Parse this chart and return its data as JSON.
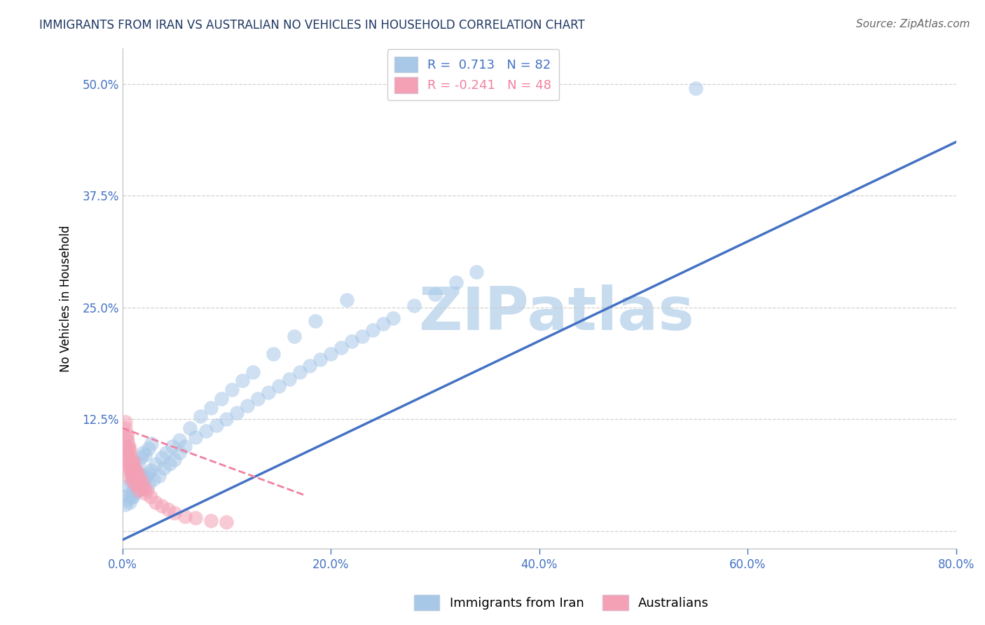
{
  "title": "IMMIGRANTS FROM IRAN VS AUSTRALIAN NO VEHICLES IN HOUSEHOLD CORRELATION CHART",
  "source": "Source: ZipAtlas.com",
  "ylabel": "No Vehicles in Household",
  "xlim": [
    0.0,
    0.8
  ],
  "ylim": [
    -0.02,
    0.54
  ],
  "xticks": [
    0.0,
    0.2,
    0.4,
    0.6,
    0.8
  ],
  "xticklabels": [
    "0.0%",
    "20.0%",
    "40.0%",
    "60.0%",
    "80.0%"
  ],
  "yticks": [
    0.0,
    0.125,
    0.25,
    0.375,
    0.5
  ],
  "yticklabels": [
    "",
    "12.5%",
    "25.0%",
    "37.5%",
    "50.0%"
  ],
  "legend_blue_label": "R =  0.713   N = 82",
  "legend_pink_label": "R = -0.241   N = 48",
  "legend_label1": "Immigrants from Iran",
  "legend_label2": "Australians",
  "blue_color": "#A8C8E8",
  "pink_color": "#F4A0B5",
  "blue_line_color": "#4472C4",
  "pink_line_color": "#F080A0",
  "axis_color": "#4472C4",
  "grid_color": "#CCCCCC",
  "watermark_color": "#C8DCEF",
  "watermark_text": "ZIPatlas",
  "title_color": "#1F3864",
  "blue_line_x": [
    0.0,
    0.8
  ],
  "blue_line_y": [
    -0.01,
    0.435
  ],
  "pink_line_x": [
    0.0,
    0.175
  ],
  "pink_line_y": [
    0.115,
    0.04
  ],
  "blue_scatter_x": [
    0.005,
    0.008,
    0.01,
    0.012,
    0.015,
    0.018,
    0.02,
    0.022,
    0.025,
    0.008,
    0.01,
    0.012,
    0.015,
    0.018,
    0.02,
    0.022,
    0.025,
    0.028,
    0.005,
    0.008,
    0.01,
    0.015,
    0.02,
    0.025,
    0.03,
    0.035,
    0.04,
    0.045,
    0.05,
    0.055,
    0.06,
    0.07,
    0.08,
    0.09,
    0.1,
    0.11,
    0.12,
    0.13,
    0.14,
    0.15,
    0.16,
    0.17,
    0.18,
    0.19,
    0.2,
    0.21,
    0.22,
    0.23,
    0.24,
    0.25,
    0.26,
    0.28,
    0.3,
    0.32,
    0.34,
    0.003,
    0.005,
    0.007,
    0.009,
    0.011,
    0.013,
    0.016,
    0.019,
    0.023,
    0.027,
    0.032,
    0.038,
    0.042,
    0.048,
    0.055,
    0.065,
    0.075,
    0.085,
    0.095,
    0.105,
    0.115,
    0.125,
    0.145,
    0.165,
    0.185,
    0.215,
    0.55
  ],
  "blue_scatter_y": [
    0.05,
    0.055,
    0.06,
    0.048,
    0.052,
    0.058,
    0.062,
    0.058,
    0.065,
    0.072,
    0.078,
    0.068,
    0.075,
    0.082,
    0.088,
    0.085,
    0.092,
    0.098,
    0.04,
    0.042,
    0.038,
    0.045,
    0.048,
    0.052,
    0.058,
    0.062,
    0.07,
    0.075,
    0.08,
    0.088,
    0.095,
    0.105,
    0.112,
    0.118,
    0.125,
    0.132,
    0.14,
    0.148,
    0.155,
    0.162,
    0.17,
    0.178,
    0.185,
    0.192,
    0.198,
    0.205,
    0.212,
    0.218,
    0.225,
    0.232,
    0.238,
    0.252,
    0.265,
    0.278,
    0.29,
    0.03,
    0.035,
    0.032,
    0.038,
    0.042,
    0.045,
    0.05,
    0.055,
    0.062,
    0.068,
    0.075,
    0.082,
    0.088,
    0.095,
    0.102,
    0.115,
    0.128,
    0.138,
    0.148,
    0.158,
    0.168,
    0.178,
    0.198,
    0.218,
    0.235,
    0.258,
    0.495
  ],
  "pink_scatter_x": [
    0.003,
    0.005,
    0.007,
    0.003,
    0.005,
    0.008,
    0.01,
    0.004,
    0.006,
    0.009,
    0.012,
    0.015,
    0.005,
    0.008,
    0.011,
    0.014,
    0.018,
    0.006,
    0.01,
    0.013,
    0.017,
    0.021,
    0.004,
    0.007,
    0.011,
    0.015,
    0.019,
    0.024,
    0.003,
    0.005,
    0.008,
    0.004,
    0.003,
    0.009,
    0.013,
    0.006,
    0.016,
    0.022,
    0.027,
    0.032,
    0.038,
    0.044,
    0.05,
    0.06,
    0.07,
    0.085,
    0.1
  ],
  "pink_scatter_y": [
    0.085,
    0.07,
    0.06,
    0.095,
    0.075,
    0.065,
    0.055,
    0.08,
    0.072,
    0.062,
    0.052,
    0.045,
    0.088,
    0.075,
    0.065,
    0.058,
    0.048,
    0.092,
    0.078,
    0.068,
    0.058,
    0.048,
    0.105,
    0.09,
    0.075,
    0.065,
    0.055,
    0.045,
    0.115,
    0.1,
    0.082,
    0.108,
    0.122,
    0.072,
    0.062,
    0.095,
    0.052,
    0.042,
    0.038,
    0.032,
    0.028,
    0.024,
    0.02,
    0.016,
    0.015,
    0.012,
    0.01
  ]
}
